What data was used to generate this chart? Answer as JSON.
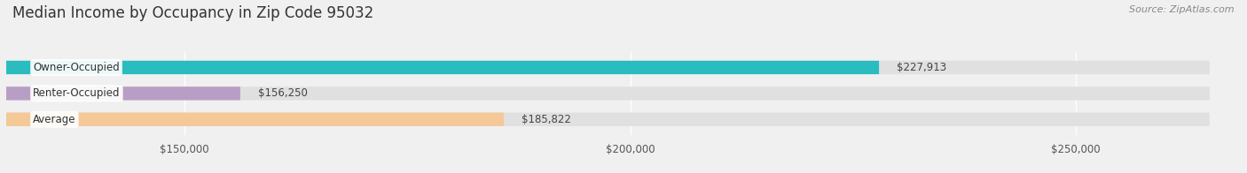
{
  "title": "Median Income by Occupancy in Zip Code 95032",
  "source": "Source: ZipAtlas.com",
  "categories": [
    "Owner-Occupied",
    "Renter-Occupied",
    "Average"
  ],
  "values": [
    227913,
    156250,
    185822
  ],
  "labels": [
    "$227,913",
    "$156,250",
    "$185,822"
  ],
  "bar_colors": [
    "#2bbcbf",
    "#b89ec4",
    "#f5c897"
  ],
  "x_min": 130000,
  "x_max": 265000,
  "x_ticks": [
    150000,
    200000,
    250000
  ],
  "x_tick_labels": [
    "$150,000",
    "$200,000",
    "$250,000"
  ],
  "background_color": "#f0f0f0",
  "bar_background_color": "#e0e0e0",
  "title_fontsize": 12,
  "source_fontsize": 8,
  "tick_fontsize": 8.5,
  "bar_label_fontsize": 8.5,
  "category_label_fontsize": 8.5
}
